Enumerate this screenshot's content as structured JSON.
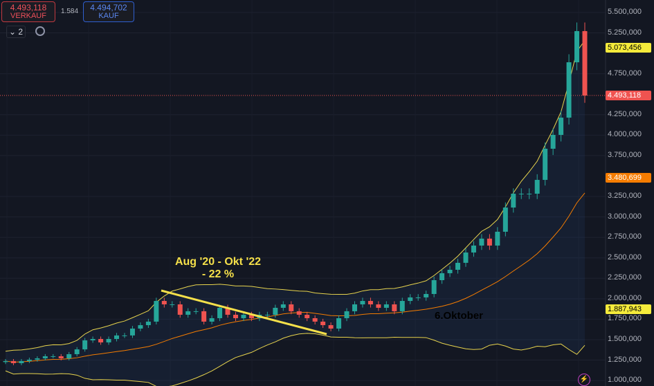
{
  "trade": {
    "sell_price": "4.493,118",
    "sell_label": "VERKAUF",
    "spread": "1.584",
    "buy_price": "4.494,702",
    "buy_label": "KAUF",
    "interval_count": "2"
  },
  "annotations": {
    "title": "Aug '20 - Okt '22",
    "change": "- 22 %",
    "date_note": "6.Oktober"
  },
  "chart_data": {
    "type": "candlestick",
    "title": "",
    "ylim": [
      1000000,
      5500000
    ],
    "y_ticks": [
      "5.500,000",
      "5.250,000",
      "4.750,000",
      "4.250,000",
      "4.000,000",
      "3.750,000",
      "3.250,000",
      "3.000,000",
      "2.750,000",
      "2.500,000",
      "2.250,000",
      "2.000,000",
      "1.750,000",
      "1.500,000",
      "1.250,000",
      "1.000,000"
    ],
    "y_tick_values": [
      5500000,
      5250000,
      4750000,
      4250000,
      4000000,
      3750000,
      3250000,
      3000000,
      2750000,
      2500000,
      2250000,
      2000000,
      1750000,
      1500000,
      1250000,
      1000000
    ],
    "closes": [
      1238,
      1212,
      1238,
      1255,
      1271,
      1297,
      1297,
      1271,
      1322,
      1381,
      1491,
      1508,
      1466,
      1508,
      1551,
      1551,
      1635,
      1677,
      1720,
      1973,
      1931,
      1931,
      1804,
      1847,
      1847,
      1720,
      1762,
      1889,
      1804,
      1762,
      1804,
      1762,
      1804,
      1804,
      1889,
      1931,
      1847,
      1804,
      1762,
      1720,
      1677,
      1635,
      1762,
      1847,
      1931,
      1973,
      1931,
      1889,
      1931,
      1847,
      1973,
      2016,
      2016,
      2058,
      2227,
      2312,
      2354,
      2439,
      2565,
      2650,
      2735,
      2650,
      2819,
      3115,
      3284,
      3284,
      3284,
      3453,
      3834,
      4003,
      4214,
      4891,
      5272,
      4485
    ],
    "scale": 1000,
    "labels": {
      "last_price": "4.493,118",
      "upper_band": "5.073,456",
      "middle_band": "3.480,699",
      "lower_band": "1.887,943"
    },
    "colors": {
      "up": "#26a69a",
      "down": "#ef5350",
      "band": "#e8d44d",
      "middle": "#f57c00",
      "bg": "#131722"
    }
  }
}
